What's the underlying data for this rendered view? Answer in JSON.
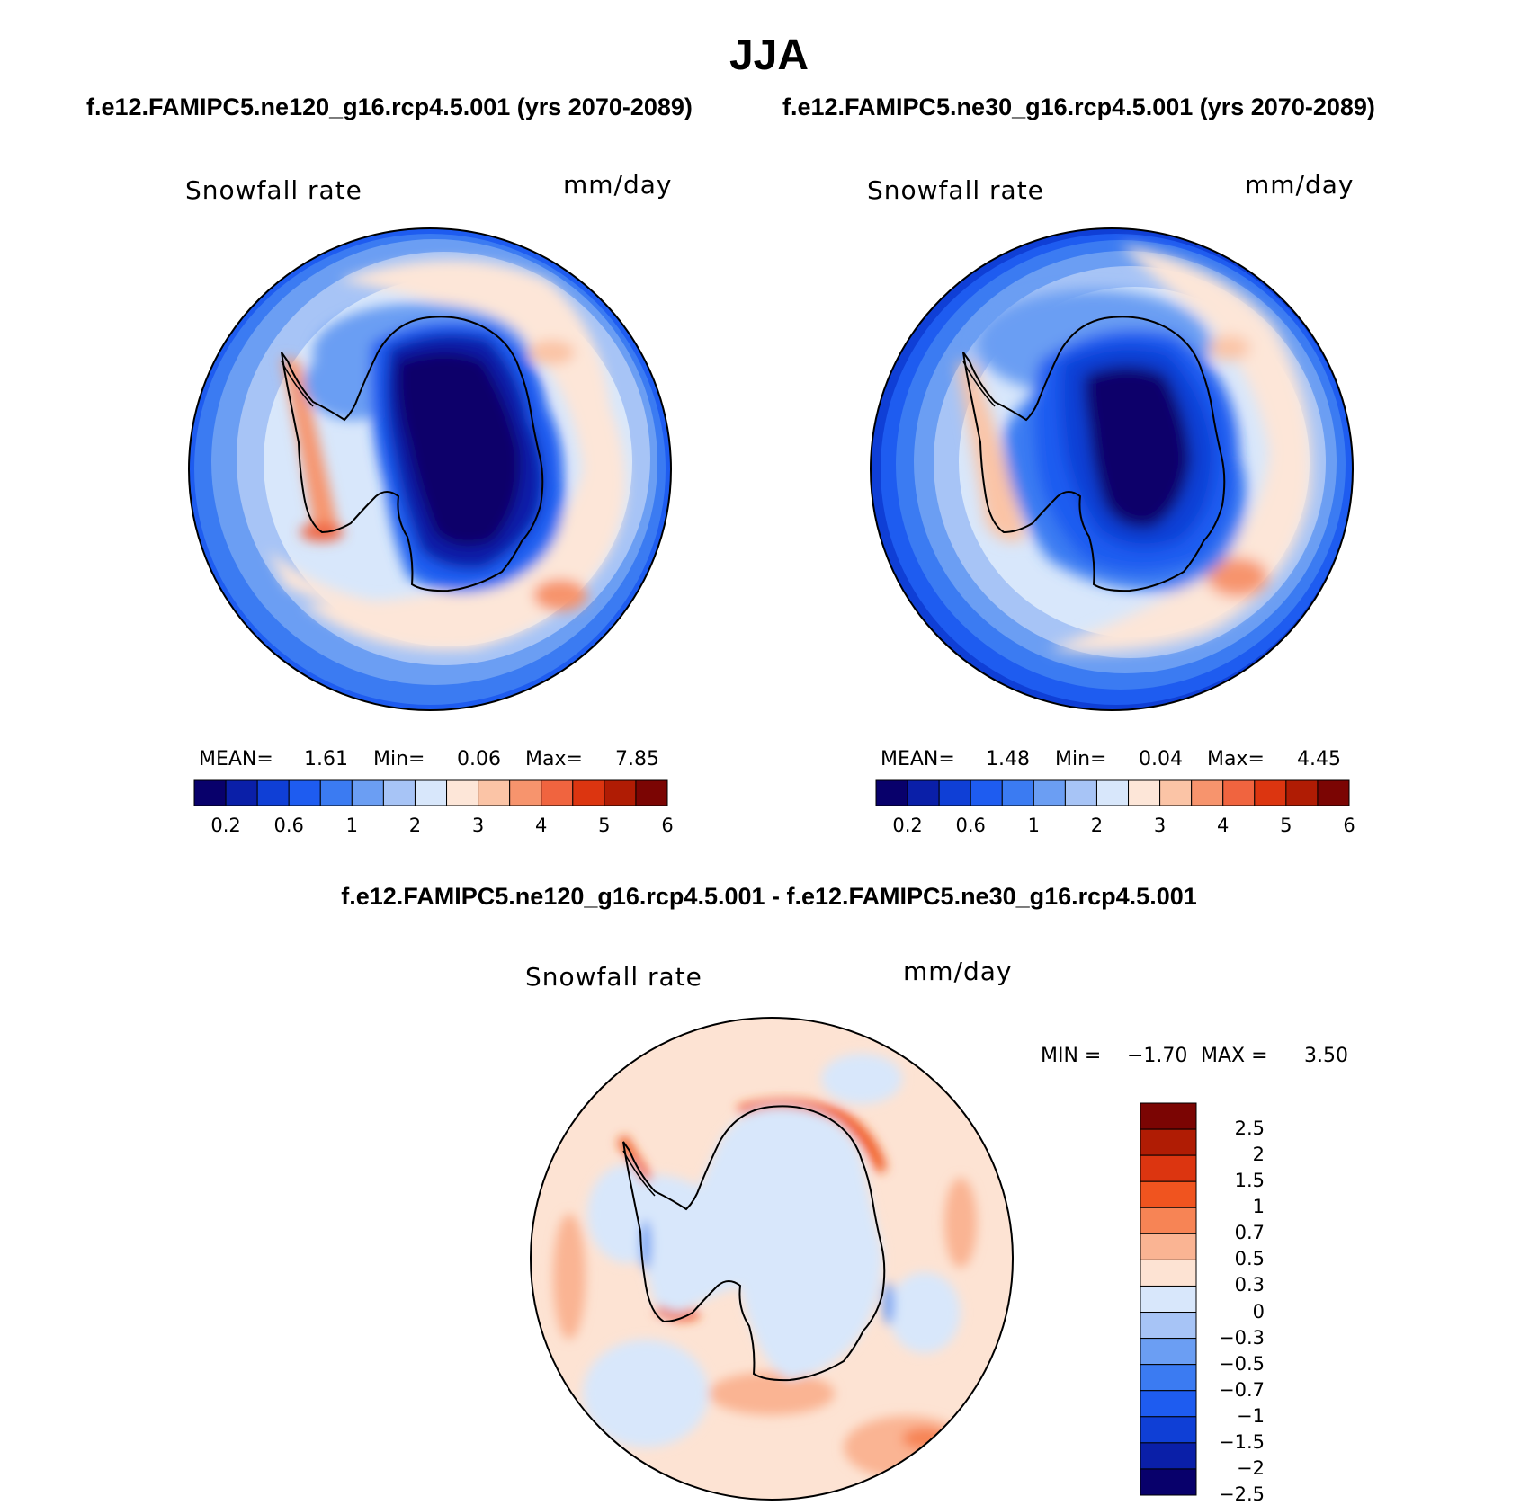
{
  "main_title": "JJA",
  "subtitle_left": "f.e12.FAMIPC5.ne120_g16.rcp4.5.001 (yrs 2070-2089)",
  "subtitle_right": "f.e12.FAMIPC5.ne30_g16.rcp4.5.001 (yrs 2070-2089)",
  "diff_title": "f.e12.FAMIPC5.ne120_g16.rcp4.5.001 - f.e12.FAMIPC5.ne30_g16.rcp4.5.001",
  "panels": [
    {
      "variable": "Snowfall rate",
      "units": "mm/day",
      "mean_label": "MEAN=",
      "mean_value": "1.61",
      "min_label": "Min=",
      "min_value": "0.06",
      "max_label": "Max=",
      "max_value": "7.85"
    },
    {
      "variable": "Snowfall rate",
      "units": "mm/day",
      "mean_label": "MEAN=",
      "mean_value": "1.48",
      "min_label": "Min=",
      "min_value": "0.04",
      "max_label": "Max=",
      "max_value": "4.45"
    }
  ],
  "diff_panel": {
    "variable": "Snowfall rate",
    "units": "mm/day",
    "min_label": "MIN =",
    "min_value": "−1.70",
    "max_label": "MAX =",
    "max_value": "3.50"
  },
  "colorbar_abs": {
    "colors": [
      "#08006b",
      "#0a1fa8",
      "#0f3fd6",
      "#1e5cf0",
      "#3b7bf2",
      "#6b9ef3",
      "#a7c4f6",
      "#d8e7fb",
      "#fde6d8",
      "#fbc4a6",
      "#f7946d",
      "#f0643f",
      "#dc3510",
      "#b01c04",
      "#7b0503"
    ],
    "ticks": [
      "0.2",
      "0.6",
      "1",
      "2",
      "3",
      "4",
      "5",
      "6"
    ]
  },
  "colorbar_diff": {
    "colors": [
      "#7b0503",
      "#b01c04",
      "#dc3510",
      "#f0541f",
      "#f78455",
      "#fab493",
      "#fde3d3",
      "#d8e7fb",
      "#a7c4f6",
      "#6b9ef3",
      "#3b7bf2",
      "#1e5cf0",
      "#0f3fd6",
      "#0a1fa8",
      "#08006b"
    ],
    "ticks": [
      "2.5",
      "2",
      "1.5",
      "1",
      "0.7",
      "0.5",
      "0.3",
      "0",
      "−0.3",
      "−0.5",
      "−0.7",
      "−1",
      "−1.5",
      "−2",
      "−2.5"
    ]
  }
}
